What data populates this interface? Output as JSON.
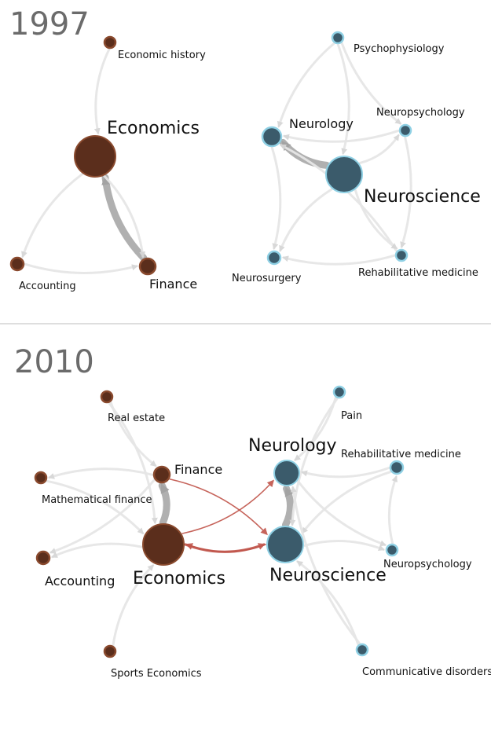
{
  "colors": {
    "econ_fill": "#5b2e1c",
    "econ_stroke": "#8a4a2e",
    "neuro_fill": "#3b5b6b",
    "neuro_stroke": "#8fd0e4",
    "edge_gray": "#e6e6e6",
    "edge_mid": "#a8a8a8",
    "edge_red": "#c0544a",
    "divider": "#bdbdbd",
    "year_text": "#6b6b6b"
  },
  "panels": [
    {
      "id": "panel-1997",
      "year": "1997",
      "nodes": [
        {
          "id": "econ_hist",
          "label": "Economic history",
          "group": "econ"
        },
        {
          "id": "econ",
          "label": "Economics",
          "group": "econ"
        },
        {
          "id": "accounting",
          "label": "Accounting",
          "group": "econ"
        },
        {
          "id": "finance",
          "label": "Finance",
          "group": "econ"
        },
        {
          "id": "psychophys",
          "label": "Psychophysiology",
          "group": "neuro"
        },
        {
          "id": "neurology",
          "label": "Neurology",
          "group": "neuro"
        },
        {
          "id": "neuropsych",
          "label": "Neuropsychology",
          "group": "neuro"
        },
        {
          "id": "neuroscience",
          "label": "Neuroscience",
          "group": "neuro"
        },
        {
          "id": "neurosurgery",
          "label": "Neurosurgery",
          "group": "neuro"
        },
        {
          "id": "rehab",
          "label": "Rehabilitative medicine",
          "group": "neuro"
        }
      ],
      "edges": [
        {
          "source": "econ_hist",
          "target": "econ",
          "weight": "light"
        },
        {
          "source": "finance",
          "target": "econ",
          "weight": "heavy"
        },
        {
          "source": "econ",
          "target": "accounting",
          "weight": "light"
        },
        {
          "source": "econ",
          "target": "finance",
          "weight": "light"
        },
        {
          "source": "accounting",
          "target": "finance",
          "weight": "light"
        },
        {
          "source": "neuroscience",
          "target": "neurology",
          "weight": "heavy"
        },
        {
          "source": "psychophys",
          "target": "neurology",
          "weight": "light"
        },
        {
          "source": "psychophys",
          "target": "neuroscience",
          "weight": "light"
        },
        {
          "source": "psychophys",
          "target": "neuropsych",
          "weight": "light"
        },
        {
          "source": "neuropsych",
          "target": "neurology",
          "weight": "light"
        },
        {
          "source": "neuroscience",
          "target": "neuropsych",
          "weight": "light"
        },
        {
          "source": "neurology",
          "target": "neurosurgery",
          "weight": "light"
        },
        {
          "source": "neuroscience",
          "target": "neurosurgery",
          "weight": "light"
        },
        {
          "source": "rehab",
          "target": "neurosurgery",
          "weight": "light"
        },
        {
          "source": "rehab",
          "target": "neurology",
          "weight": "light"
        },
        {
          "source": "neuropsych",
          "target": "rehab",
          "weight": "light"
        },
        {
          "source": "neuroscience",
          "target": "rehab",
          "weight": "light"
        }
      ]
    },
    {
      "id": "panel-2010",
      "year": "2010",
      "nodes": [
        {
          "id": "realestate",
          "label": "Real estate",
          "group": "econ"
        },
        {
          "id": "finance",
          "label": "Finance",
          "group": "econ"
        },
        {
          "id": "mathfin",
          "label": "Mathematical finance",
          "group": "econ"
        },
        {
          "id": "accounting",
          "label": "Accounting",
          "group": "econ"
        },
        {
          "id": "econ",
          "label": "Economics",
          "group": "econ"
        },
        {
          "id": "sports",
          "label": "Sports Economics",
          "group": "econ"
        },
        {
          "id": "pain",
          "label": "Pain",
          "group": "neuro"
        },
        {
          "id": "neurology",
          "label": "Neurology",
          "group": "neuro"
        },
        {
          "id": "rehab",
          "label": "Rehabilitative medicine",
          "group": "neuro"
        },
        {
          "id": "neuroscience",
          "label": "Neuroscience",
          "group": "neuro"
        },
        {
          "id": "neuropsych",
          "label": "Neuropsychology",
          "group": "neuro"
        },
        {
          "id": "commdis",
          "label": "Communicative disorders",
          "group": "neuro"
        }
      ],
      "edges": [
        {
          "source": "realestate",
          "target": "finance",
          "weight": "light"
        },
        {
          "source": "realestate",
          "target": "econ",
          "weight": "light"
        },
        {
          "source": "finance",
          "target": "mathfin",
          "weight": "light"
        },
        {
          "source": "finance",
          "target": "accounting",
          "weight": "light"
        },
        {
          "source": "econ",
          "target": "finance",
          "weight": "heavy"
        },
        {
          "source": "mathfin",
          "target": "econ",
          "weight": "light"
        },
        {
          "source": "econ",
          "target": "accounting",
          "weight": "light"
        },
        {
          "source": "sports",
          "target": "econ",
          "weight": "light"
        },
        {
          "source": "econ",
          "target": "neuroscience",
          "weight": "red_heavy"
        },
        {
          "source": "neuroscience",
          "target": "econ",
          "weight": "red"
        },
        {
          "source": "econ",
          "target": "neurology",
          "weight": "red"
        },
        {
          "source": "finance",
          "target": "neuroscience",
          "weight": "red"
        },
        {
          "source": "neuroscience",
          "target": "neurology",
          "weight": "heavy"
        },
        {
          "source": "pain",
          "target": "neurology",
          "weight": "light"
        },
        {
          "source": "pain",
          "target": "neuroscience",
          "weight": "light"
        },
        {
          "source": "rehab",
          "target": "neurology",
          "weight": "light"
        },
        {
          "source": "rehab",
          "target": "neuroscience",
          "weight": "light"
        },
        {
          "source": "neuroscience",
          "target": "neuropsych",
          "weight": "light"
        },
        {
          "source": "neurology",
          "target": "neuropsych",
          "weight": "light"
        },
        {
          "source": "neuropsych",
          "target": "rehab",
          "weight": "light"
        },
        {
          "source": "commdis",
          "target": "neuroscience",
          "weight": "light"
        },
        {
          "source": "commdis",
          "target": "neurology",
          "weight": "light"
        }
      ]
    }
  ]
}
